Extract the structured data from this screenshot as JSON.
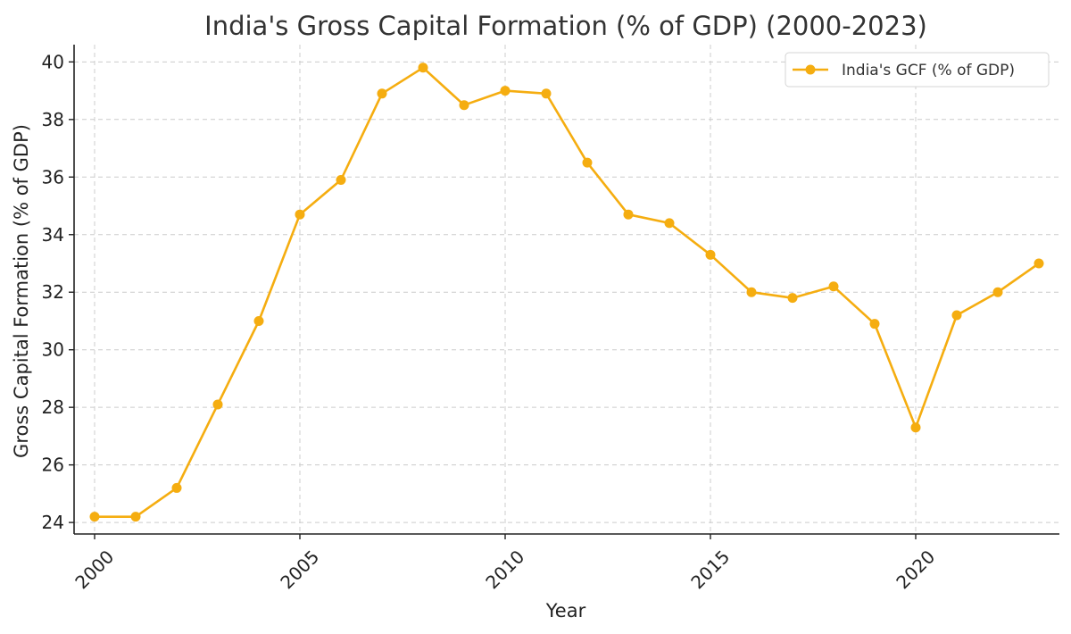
{
  "chart_data": {
    "type": "line",
    "title": "India's Gross Capital Formation (% of GDP) (2000-2023)",
    "xlabel": "Year",
    "ylabel": "Gross Capital Formation (% of GDP)",
    "xlim": [
      1999.5,
      2023.5
    ],
    "ylim": [
      23.6,
      40.6
    ],
    "x_ticks": [
      2000,
      2005,
      2010,
      2015,
      2020
    ],
    "y_ticks": [
      24,
      26,
      28,
      30,
      32,
      34,
      36,
      38,
      40
    ],
    "grid": true,
    "legend_position": "top-right",
    "series": [
      {
        "name": "India's GCF (% of GDP)",
        "color": "#f5ad10",
        "marker": "circle",
        "x": [
          2000,
          2001,
          2002,
          2003,
          2004,
          2005,
          2006,
          2007,
          2008,
          2009,
          2010,
          2011,
          2012,
          2013,
          2014,
          2015,
          2016,
          2017,
          2018,
          2019,
          2020,
          2021,
          2022,
          2023
        ],
        "y": [
          24.2,
          24.2,
          25.2,
          28.1,
          31.0,
          34.7,
          35.9,
          38.9,
          39.8,
          38.5,
          39.0,
          38.9,
          36.5,
          34.7,
          34.4,
          33.3,
          32.0,
          31.8,
          32.2,
          30.9,
          27.3,
          31.2,
          32.0,
          33.0
        ]
      }
    ]
  }
}
